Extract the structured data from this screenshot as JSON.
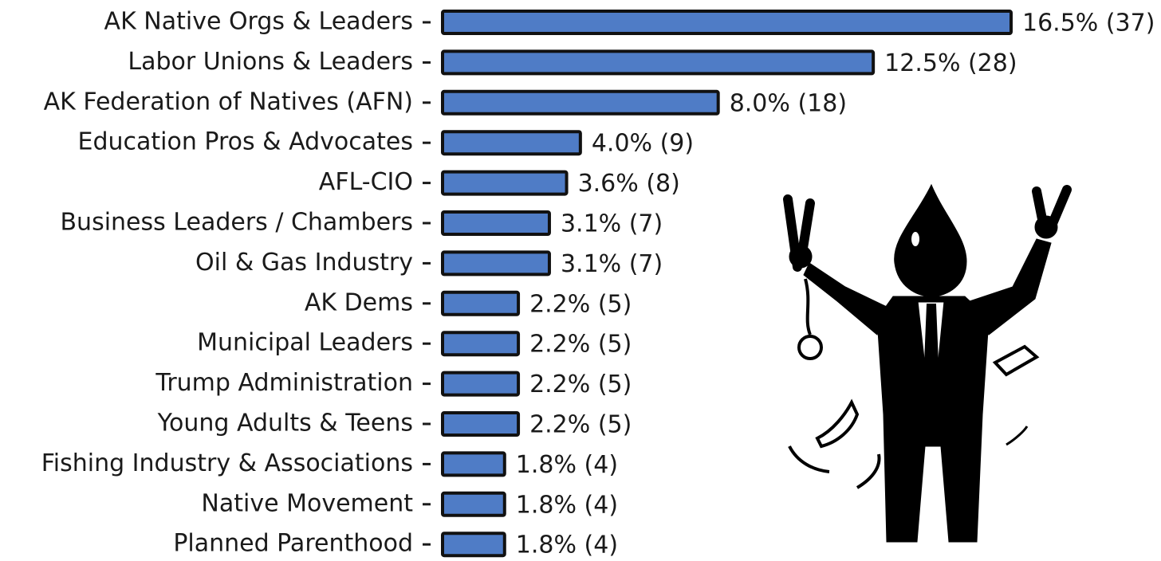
{
  "chart_data": {
    "type": "barh",
    "categories": [
      "AK Native Orgs & Leaders",
      "Labor Unions & Leaders",
      "AK Federation of Natives (AFN)",
      "Education Pros & Advocates",
      "AFL-CIO",
      "Business Leaders / Chambers",
      "Oil & Gas Industry",
      "AK Dems",
      "Municipal Leaders",
      "Trump Administration",
      "Young Adults & Teens",
      "Fishing Industry & Associations",
      "Native Movement",
      "Planned Parenthood"
    ],
    "values": [
      16.5,
      12.5,
      8.0,
      4.0,
      3.6,
      3.1,
      3.1,
      2.2,
      2.2,
      2.2,
      2.2,
      1.8,
      1.8,
      1.8
    ],
    "value_labels": [
      "16.5% (37)",
      "12.5% (28)",
      "8.0% (18)",
      "4.0% (9)",
      "3.6% (8)",
      "3.1% (7)",
      "3.1% (7)",
      "2.2% (5)",
      "2.2% (5)",
      "2.2% (5)",
      "2.2% (5)",
      "1.8% (4)",
      "1.8% (4)",
      "1.8% (4)"
    ],
    "color": "#4f7cc6"
  }
}
